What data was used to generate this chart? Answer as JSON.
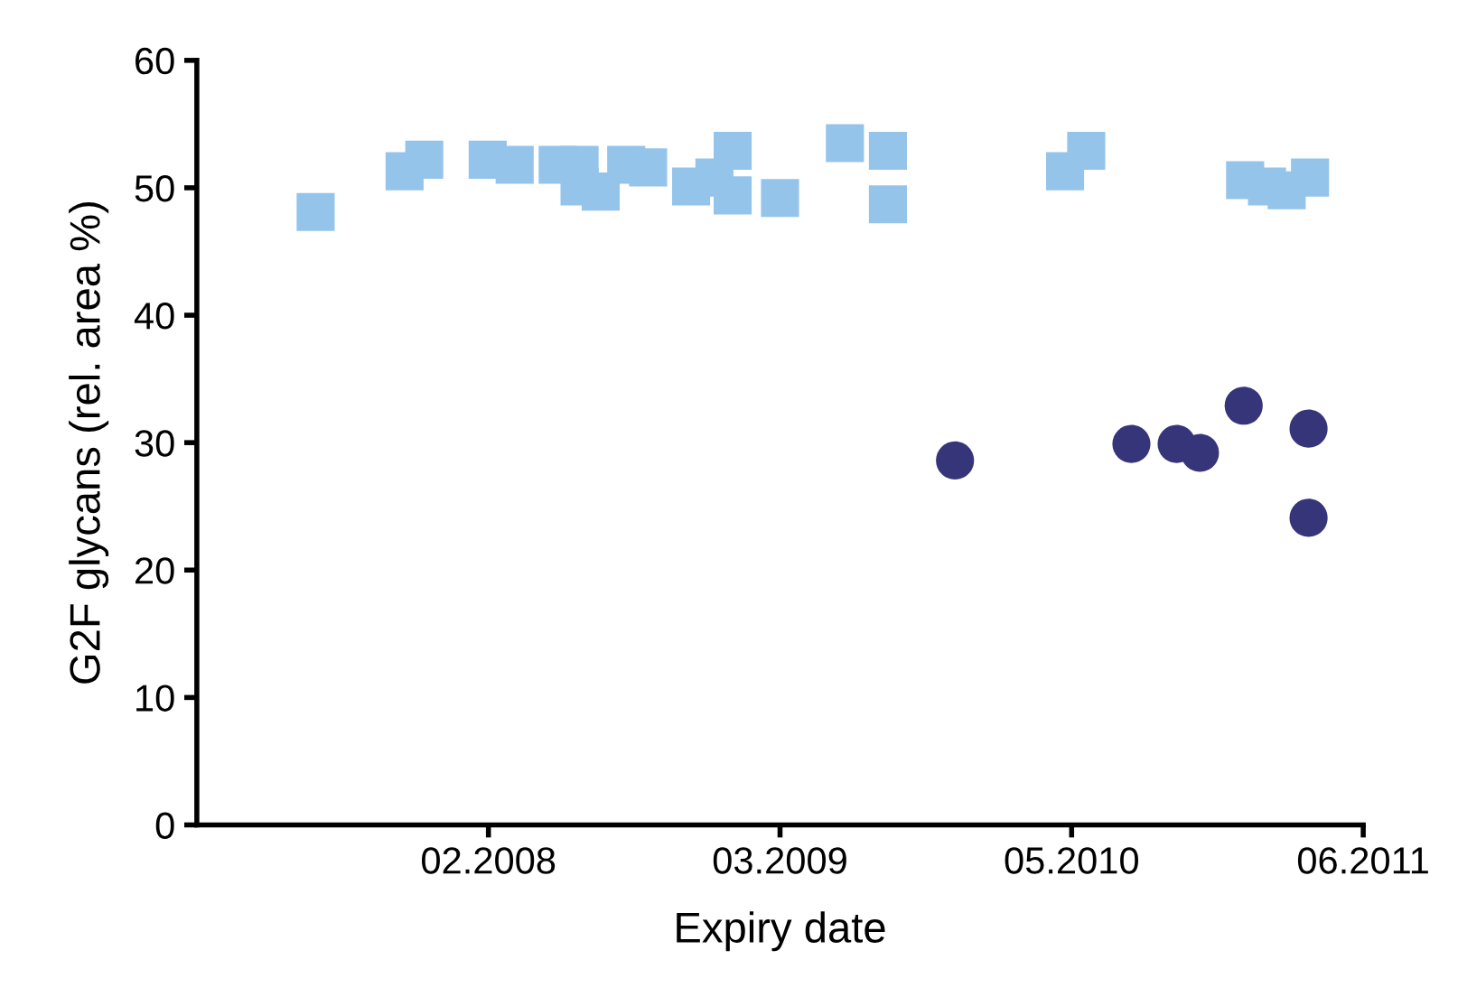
{
  "chart_data": {
    "type": "scatter",
    "xlabel": "Expiry date",
    "ylabel": "G2F glycans (rel. area %)",
    "xlim": [
      "2007-01-21",
      "2011-06-09"
    ],
    "xticks": [
      {
        "value": "2008-02-25",
        "label": "02.2008"
      },
      {
        "value": "2009-03-31",
        "label": "03.2009"
      },
      {
        "value": "2010-05-05",
        "label": "05.2010"
      },
      {
        "value": "2011-06-09",
        "label": "06.2011"
      }
    ],
    "ylim": [
      0,
      60
    ],
    "yticks": [
      0,
      10,
      20,
      30,
      40,
      50,
      60
    ],
    "grid": false,
    "series": [
      {
        "color": "#95c4eb",
        "marker": "square",
        "x": [
          "2007-07-03",
          "2007-11-02",
          "2007-11-29",
          "2008-02-24",
          "2008-04-01",
          "2008-05-30",
          "2008-06-29",
          "2008-06-29",
          "2008-07-28",
          "2008-09-01",
          "2008-10-01",
          "2008-11-29",
          "2008-12-31",
          "2009-01-25",
          "2009-01-25",
          "2009-03-31",
          "2009-06-28",
          "2009-08-26",
          "2009-08-26",
          "2010-04-26",
          "2010-05-25",
          "2010-12-29",
          "2011-01-28",
          "2011-02-24",
          "2011-03-28"
        ],
        "values": [
          48.1,
          51.3,
          52.2,
          52.2,
          51.8,
          51.8,
          51.8,
          50.1,
          49.7,
          51.8,
          51.6,
          50.1,
          50.8,
          52.9,
          49.4,
          49.2,
          53.5,
          52.9,
          48.7,
          51.3,
          52.9,
          50.6,
          50.1,
          49.8,
          50.8
        ]
      },
      {
        "color": "#36357a",
        "marker": "circle",
        "x": [
          "2009-11-26",
          "2010-07-26",
          "2010-09-26",
          "2010-10-28",
          "2010-12-27",
          "2011-03-26",
          "2011-03-26"
        ],
        "values": [
          28.6,
          29.9,
          29.9,
          29.2,
          32.9,
          31.1,
          24.1
        ]
      }
    ]
  }
}
